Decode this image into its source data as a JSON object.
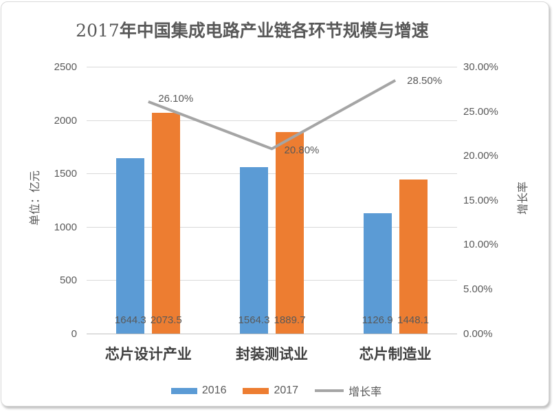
{
  "title": {
    "prefix": "2017",
    "main": "年中国集成电路产业链各环节规模与增速",
    "full": "2017年中国集成电路产业链各环节规模与增速"
  },
  "colors": {
    "bar_2016": "#5B9BD5",
    "bar_2017": "#ED7D31",
    "growth_line": "#A5A5A5",
    "gridline": "#D9D9D9",
    "axis_line": "#BFBFBF",
    "label_text": "#595959",
    "category_text": "#404040"
  },
  "chart_data": {
    "type": "bar+line combo",
    "title": "2017年中国集成电路产业链各环节规模与增速",
    "categories": [
      "芯片设计产业",
      "封装测试业",
      "芯片制造业"
    ],
    "series": [
      {
        "name": "2016",
        "type": "bar",
        "color": "#5B9BD5",
        "values": [
          1644.3,
          1564.3,
          1126.9
        ],
        "labels": [
          "1644.3",
          "1564.3",
          "1126.9"
        ]
      },
      {
        "name": "2017",
        "type": "bar",
        "color": "#ED7D31",
        "values": [
          2073.5,
          1889.7,
          1448.1
        ],
        "labels": [
          "2073.5",
          "1889.7",
          "1448.1"
        ]
      },
      {
        "name": "增长率",
        "type": "line",
        "color": "#A5A5A5",
        "values_pct": [
          26.1,
          20.8,
          28.5
        ],
        "labels": [
          "26.10%",
          "20.80%",
          "28.50%"
        ]
      }
    ],
    "left_axis": {
      "title": "单位：亿元",
      "tick_labels": [
        "2500",
        "2000",
        "1500",
        "1000",
        "500",
        "0"
      ],
      "tick_values": [
        2500,
        2000,
        1500,
        1000,
        500,
        0
      ],
      "min": 0,
      "max": 2500
    },
    "right_axis": {
      "title": "增长率",
      "tick_labels": [
        "30.00%",
        "25.00%",
        "20.00%",
        "15.00%",
        "10.00%",
        "5.00%",
        "0.00%"
      ],
      "tick_values": [
        30,
        25,
        20,
        15,
        10,
        5,
        0
      ],
      "min": 0,
      "max": 30
    },
    "legend": [
      "2016",
      "2017",
      "增长率"
    ],
    "grid": "horizontal major gridlines, left axis",
    "legend_position": "bottom"
  }
}
